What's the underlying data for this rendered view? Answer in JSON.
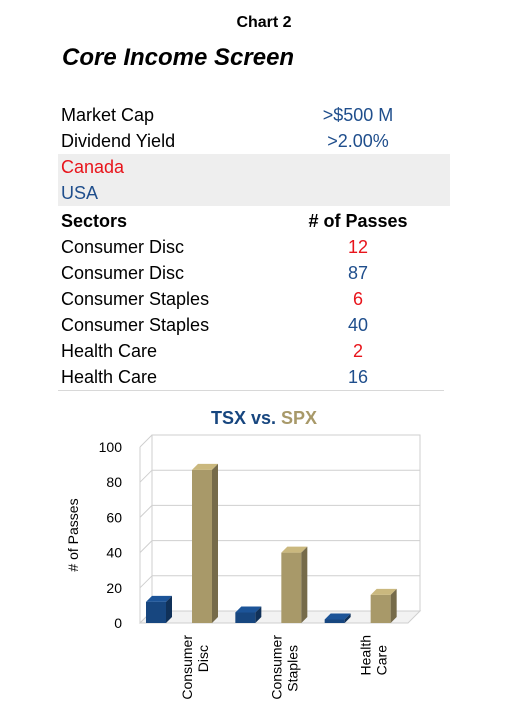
{
  "header": {
    "chart_label": "Chart 2",
    "title": "Core Income Screen"
  },
  "criteria": [
    {
      "label": "Market Cap",
      "value": ">$500 M"
    },
    {
      "label": "Dividend Yield",
      "value": ">2.00%"
    }
  ],
  "markets": [
    {
      "label": "Canada",
      "color": "#e8141b"
    },
    {
      "label": "USA",
      "color": "#1f4e8c"
    }
  ],
  "table": {
    "col_sector": "Sectors",
    "col_passes": "# of Passes",
    "rows": [
      {
        "sector": "Consumer Disc",
        "passes": "12",
        "color": "#e8141b"
      },
      {
        "sector": "Consumer Disc",
        "passes": "87",
        "color": "#1f4e8c"
      },
      {
        "sector": "Consumer Staples",
        "passes": "6",
        "color": "#e8141b"
      },
      {
        "sector": "Consumer Staples",
        "passes": "40",
        "color": "#1f4e8c"
      },
      {
        "sector": "Health Care",
        "passes": "2",
        "color": "#e8141b"
      },
      {
        "sector": "Health Care",
        "passes": "16",
        "color": "#1f4e8c"
      }
    ]
  },
  "colors": {
    "value_blue": "#1f4e8c",
    "tsx_bar": "#17467f",
    "spx_bar": "#a89969",
    "title_tsx": "#17467f",
    "title_spx": "#a89969"
  },
  "chart_data": {
    "type": "bar",
    "title_parts": [
      "TSX",
      " vs. ",
      "SPX"
    ],
    "xlabel": "",
    "ylabel": "# of Passes",
    "ylim": [
      0,
      100
    ],
    "yticks": [
      0,
      20,
      40,
      60,
      80,
      100
    ],
    "grid": true,
    "categories": [
      "Consumer Disc",
      "Consumer Staples",
      "Health Care"
    ],
    "category_lines": [
      [
        "Consumer",
        "Disc"
      ],
      [
        "Consumer",
        "Staples"
      ],
      [
        "Health",
        "Care"
      ]
    ],
    "series": [
      {
        "name": "TSX",
        "values": [
          12,
          6,
          2
        ]
      },
      {
        "name": "SPX",
        "values": [
          87,
          40,
          16
        ]
      }
    ]
  }
}
